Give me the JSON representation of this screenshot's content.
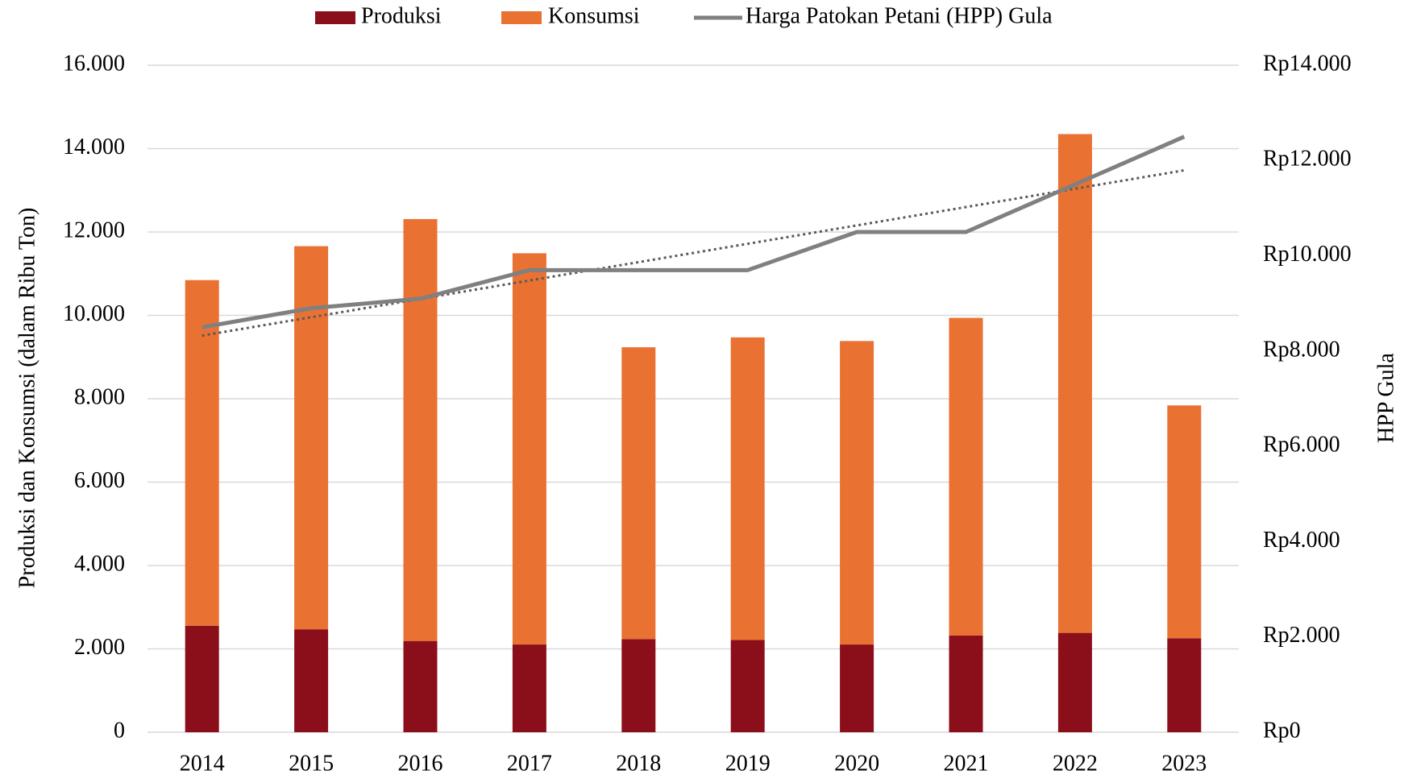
{
  "chart_data": {
    "type": "bar",
    "categories": [
      "2014",
      "2015",
      "2016",
      "2017",
      "2018",
      "2019",
      "2020",
      "2021",
      "2022",
      "2023"
    ],
    "stacked": true,
    "series": [
      {
        "name": "Produksi",
        "color": "#8b0f1a",
        "values": [
          2556,
          2470,
          2190,
          2105,
          2235,
          2212,
          2105,
          2320,
          2384,
          2255
        ]
      },
      {
        "name": "Konsumsi",
        "color": "#e97132",
        "values": [
          8290,
          9190,
          10120,
          9385,
          7000,
          7260,
          7280,
          7620,
          11965,
          5585
        ]
      },
      {
        "name": "Harga Patokan Petani (HPP) Gula",
        "type": "line",
        "axis": "y2",
        "color": "#808080",
        "trendline": true,
        "values": [
          8500,
          8900,
          9100,
          9700,
          9700,
          9700,
          10500,
          10500,
          11500,
          12500
        ]
      }
    ],
    "ylabel": "Produksi dan Konsumsi (dalam Ribu Ton)",
    "y2label": "HPP Gula",
    "ylim": [
      0,
      16000
    ],
    "yticks": [
      0,
      {
        "value": 2000,
        "label": "2.000"
      },
      {
        "value": 4000,
        "label": "4.000"
      },
      {
        "value": 6000,
        "label": "6.000"
      },
      {
        "value": 8000,
        "label": "8.000"
      },
      {
        "value": 10000,
        "label": "10.000"
      },
      {
        "value": 12000,
        "label": "12.000"
      },
      {
        "value": 14000,
        "label": "14.000"
      },
      {
        "value": 16000,
        "label": "16.000"
      }
    ],
    "y2lim": [
      0,
      14000
    ],
    "y2ticks": [
      {
        "value": 0,
        "label": "Rp0"
      },
      {
        "value": 2000,
        "label": "Rp2.000"
      },
      {
        "value": 4000,
        "label": "Rp4.000"
      },
      {
        "value": 6000,
        "label": "Rp6.000"
      },
      {
        "value": 8000,
        "label": "Rp8.000"
      },
      {
        "value": 10000,
        "label": "Rp10.000"
      },
      {
        "value": 12000,
        "label": "Rp12.000"
      },
      {
        "value": 14000,
        "label": "Rp14.000"
      }
    ],
    "grid": true,
    "legend": "top"
  }
}
